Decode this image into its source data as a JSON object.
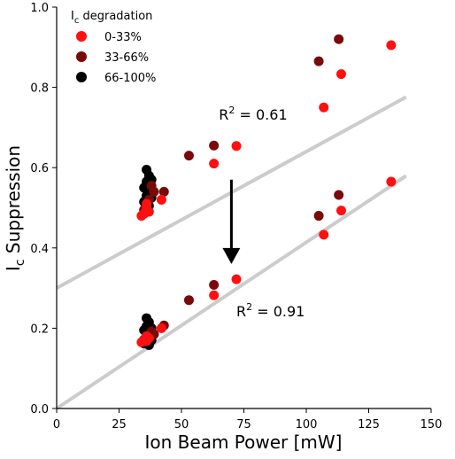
{
  "chart_data": {
    "type": "scatter",
    "xlabel": "Ion Beam Power [mW]",
    "ylabel": {
      "main": "I",
      "sub": "c",
      "rest": " Suppression"
    },
    "xlim": [
      0,
      150
    ],
    "ylim": [
      0,
      1.0
    ],
    "xticks": [
      "0",
      "25",
      "50",
      "75",
      "100",
      "125",
      "150"
    ],
    "yticks": [
      "0.0",
      "0.2",
      "0.4",
      "0.6",
      "0.8",
      "1.0"
    ],
    "grid": false,
    "legend": {
      "position": "top-left",
      "title": {
        "main": "I",
        "sub": "c",
        "rest": " degradation"
      },
      "entries": [
        {
          "label": "0-33%",
          "color": "#ff1010"
        },
        {
          "label": "33-66%",
          "color": "#7a0a0a"
        },
        {
          "label": "66-100%",
          "color": "#000000"
        }
      ]
    },
    "fit_lines": [
      {
        "intercept": 0.3,
        "slope": 0.0034,
        "x_range": [
          0,
          140
        ],
        "color": "#cccccc"
      },
      {
        "intercept": 0.0,
        "slope": 0.00414,
        "x_range": [
          0,
          140
        ],
        "color": "#cccccc"
      }
    ],
    "annotations": [
      {
        "text": {
          "pre": "R",
          "sup": "2",
          "post": " = 0.61"
        },
        "x": 65,
        "y": 0.72
      },
      {
        "text": {
          "pre": "R",
          "sup": "2",
          "post": " = 0.91"
        },
        "x": 72,
        "y": 0.23
      }
    ],
    "arrow": {
      "x": 70,
      "y_from": 0.57,
      "y_to": 0.36
    },
    "series": [
      {
        "group": "upper",
        "points": [
          {
            "x": 134,
            "y": 0.905,
            "c": "0-33%"
          },
          {
            "x": 113,
            "y": 0.92,
            "c": "33-66%"
          },
          {
            "x": 105,
            "y": 0.865,
            "c": "33-66%"
          },
          {
            "x": 114,
            "y": 0.833,
            "c": "0-33%"
          },
          {
            "x": 107,
            "y": 0.75,
            "c": "0-33%"
          },
          {
            "x": 72,
            "y": 0.654,
            "c": "0-33%"
          },
          {
            "x": 63,
            "y": 0.655,
            "c": "33-66%"
          },
          {
            "x": 63,
            "y": 0.61,
            "c": "0-33%"
          },
          {
            "x": 53,
            "y": 0.63,
            "c": "33-66%"
          },
          {
            "x": 43,
            "y": 0.54,
            "c": "33-66%"
          },
          {
            "x": 42,
            "y": 0.52,
            "c": "0-33%"
          },
          {
            "x": 36,
            "y": 0.595,
            "c": "66-100%"
          },
          {
            "x": 37,
            "y": 0.58,
            "c": "66-100%"
          },
          {
            "x": 36,
            "y": 0.565,
            "c": "66-100%"
          },
          {
            "x": 38,
            "y": 0.57,
            "c": "66-100%"
          },
          {
            "x": 35,
            "y": 0.55,
            "c": "66-100%"
          },
          {
            "x": 37,
            "y": 0.545,
            "c": "66-100%"
          },
          {
            "x": 36,
            "y": 0.53,
            "c": "66-100%"
          },
          {
            "x": 38,
            "y": 0.525,
            "c": "66-100%"
          },
          {
            "x": 35,
            "y": 0.515,
            "c": "66-100%"
          },
          {
            "x": 37,
            "y": 0.505,
            "c": "66-100%"
          },
          {
            "x": 38,
            "y": 0.555,
            "c": "33-66%"
          },
          {
            "x": 39,
            "y": 0.54,
            "c": "33-66%"
          },
          {
            "x": 37,
            "y": 0.52,
            "c": "33-66%"
          },
          {
            "x": 35,
            "y": 0.495,
            "c": "33-66%"
          },
          {
            "x": 36,
            "y": 0.51,
            "c": "0-33%"
          },
          {
            "x": 34,
            "y": 0.48,
            "c": "0-33%"
          },
          {
            "x": 35,
            "y": 0.485,
            "c": "0-33%"
          },
          {
            "x": 37,
            "y": 0.49,
            "c": "0-33%"
          },
          {
            "x": 36,
            "y": 0.5,
            "c": "0-33%"
          }
        ]
      },
      {
        "group": "lower",
        "points": [
          {
            "x": 134,
            "y": 0.565,
            "c": "0-33%"
          },
          {
            "x": 113,
            "y": 0.532,
            "c": "33-66%"
          },
          {
            "x": 105,
            "y": 0.48,
            "c": "33-66%"
          },
          {
            "x": 114,
            "y": 0.493,
            "c": "0-33%"
          },
          {
            "x": 107,
            "y": 0.433,
            "c": "0-33%"
          },
          {
            "x": 72,
            "y": 0.322,
            "c": "0-33%"
          },
          {
            "x": 63,
            "y": 0.308,
            "c": "33-66%"
          },
          {
            "x": 63,
            "y": 0.282,
            "c": "0-33%"
          },
          {
            "x": 53,
            "y": 0.27,
            "c": "33-66%"
          },
          {
            "x": 43,
            "y": 0.207,
            "c": "33-66%"
          },
          {
            "x": 42,
            "y": 0.2,
            "c": "0-33%"
          },
          {
            "x": 36,
            "y": 0.225,
            "c": "66-100%"
          },
          {
            "x": 37,
            "y": 0.215,
            "c": "66-100%"
          },
          {
            "x": 36,
            "y": 0.205,
            "c": "66-100%"
          },
          {
            "x": 38,
            "y": 0.2,
            "c": "66-100%"
          },
          {
            "x": 35,
            "y": 0.195,
            "c": "66-100%"
          },
          {
            "x": 37,
            "y": 0.188,
            "c": "66-100%"
          },
          {
            "x": 36,
            "y": 0.175,
            "c": "66-100%"
          },
          {
            "x": 38,
            "y": 0.17,
            "c": "66-100%"
          },
          {
            "x": 35,
            "y": 0.162,
            "c": "66-100%"
          },
          {
            "x": 37,
            "y": 0.158,
            "c": "66-100%"
          },
          {
            "x": 38,
            "y": 0.192,
            "c": "33-66%"
          },
          {
            "x": 39,
            "y": 0.185,
            "c": "33-66%"
          },
          {
            "x": 37,
            "y": 0.178,
            "c": "33-66%"
          },
          {
            "x": 35,
            "y": 0.172,
            "c": "33-66%"
          },
          {
            "x": 36,
            "y": 0.18,
            "c": "0-33%"
          },
          {
            "x": 34,
            "y": 0.165,
            "c": "0-33%"
          },
          {
            "x": 35,
            "y": 0.17,
            "c": "0-33%"
          },
          {
            "x": 37,
            "y": 0.175,
            "c": "0-33%"
          },
          {
            "x": 36,
            "y": 0.168,
            "c": "0-33%"
          }
        ]
      }
    ]
  }
}
